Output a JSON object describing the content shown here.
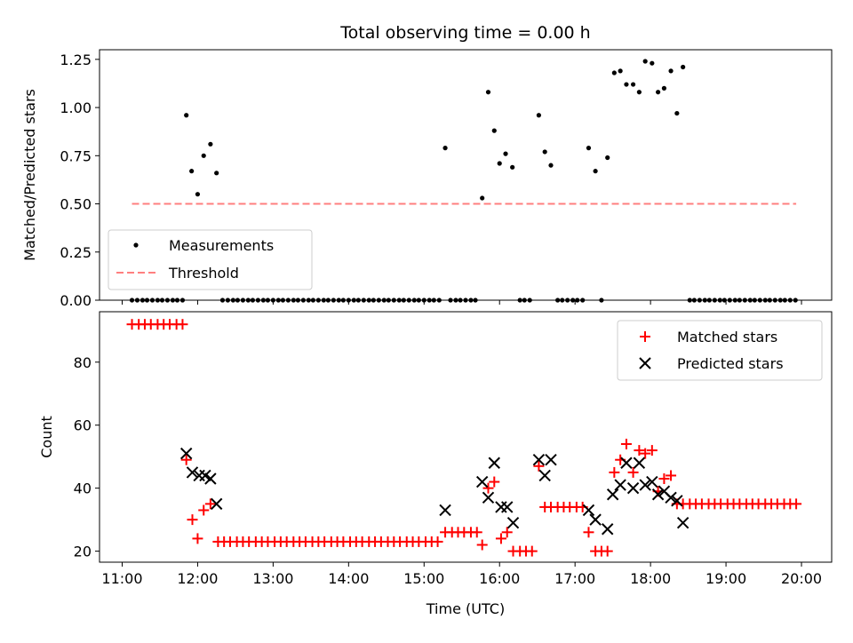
{
  "chart_data": [
    {
      "type": "scatter",
      "title": "Total observing time = 0.00 h",
      "ylabel": "Matched/Predicted stars",
      "xlabel": "",
      "xlim": [
        10.7,
        20.4
      ],
      "ylim": [
        0,
        1.3
      ],
      "xticks": [
        11,
        12,
        13,
        14,
        15,
        16,
        17,
        18,
        19,
        20
      ],
      "yticks": [
        0,
        0.25,
        0.5,
        0.75,
        1.0,
        1.25
      ],
      "ytick_labels": [
        "0.00",
        "0.25",
        "0.50",
        "0.75",
        "1.00",
        "1.25"
      ],
      "legend_position": "lower-left",
      "series": [
        {
          "name": "Measurements",
          "color": "#000000",
          "points": [
            [
              11.13,
              0
            ],
            [
              11.2,
              0
            ],
            [
              11.27,
              0
            ],
            [
              11.33,
              0
            ],
            [
              11.4,
              0
            ],
            [
              11.47,
              0
            ],
            [
              11.53,
              0
            ],
            [
              11.6,
              0
            ],
            [
              11.67,
              0
            ],
            [
              11.73,
              0
            ],
            [
              11.8,
              0
            ],
            [
              11.85,
              0.96
            ],
            [
              11.92,
              0.67
            ],
            [
              12.0,
              0.55
            ],
            [
              12.08,
              0.75
            ],
            [
              12.17,
              0.81
            ],
            [
              12.25,
              0.66
            ],
            [
              12.33,
              0
            ],
            [
              12.4,
              0
            ],
            [
              12.47,
              0
            ],
            [
              12.53,
              0
            ],
            [
              12.6,
              0
            ],
            [
              12.67,
              0
            ],
            [
              12.73,
              0
            ],
            [
              12.8,
              0
            ],
            [
              12.87,
              0
            ],
            [
              12.93,
              0
            ],
            [
              13.0,
              0
            ],
            [
              13.07,
              0
            ],
            [
              13.13,
              0
            ],
            [
              13.2,
              0
            ],
            [
              13.27,
              0
            ],
            [
              13.33,
              0
            ],
            [
              13.4,
              0
            ],
            [
              13.47,
              0
            ],
            [
              13.53,
              0
            ],
            [
              13.6,
              0
            ],
            [
              13.67,
              0
            ],
            [
              13.73,
              0
            ],
            [
              13.8,
              0
            ],
            [
              13.87,
              0
            ],
            [
              13.93,
              0
            ],
            [
              14.0,
              0
            ],
            [
              14.07,
              0
            ],
            [
              14.13,
              0
            ],
            [
              14.2,
              0
            ],
            [
              14.27,
              0
            ],
            [
              14.33,
              0
            ],
            [
              14.4,
              0
            ],
            [
              14.47,
              0
            ],
            [
              14.53,
              0
            ],
            [
              14.6,
              0
            ],
            [
              14.67,
              0
            ],
            [
              14.73,
              0
            ],
            [
              14.8,
              0
            ],
            [
              14.87,
              0
            ],
            [
              14.93,
              0
            ],
            [
              15.0,
              0
            ],
            [
              15.07,
              0
            ],
            [
              15.13,
              0
            ],
            [
              15.2,
              0
            ],
            [
              15.28,
              0.79
            ],
            [
              15.35,
              0
            ],
            [
              15.42,
              0
            ],
            [
              15.48,
              0
            ],
            [
              15.55,
              0
            ],
            [
              15.62,
              0
            ],
            [
              15.68,
              0
            ],
            [
              15.77,
              0.53
            ],
            [
              15.85,
              1.08
            ],
            [
              15.93,
              0.88
            ],
            [
              16.0,
              0.71
            ],
            [
              16.08,
              0.76
            ],
            [
              16.17,
              0.69
            ],
            [
              16.27,
              0
            ],
            [
              16.33,
              0
            ],
            [
              16.4,
              0
            ],
            [
              16.52,
              0.96
            ],
            [
              16.6,
              0.77
            ],
            [
              16.68,
              0.7
            ],
            [
              16.77,
              0
            ],
            [
              16.83,
              0
            ],
            [
              16.9,
              0
            ],
            [
              16.97,
              0
            ],
            [
              17.03,
              0
            ],
            [
              17.1,
              0
            ],
            [
              17.18,
              0.79
            ],
            [
              17.27,
              0.67
            ],
            [
              17.35,
              0
            ],
            [
              17.43,
              0.74
            ],
            [
              17.52,
              1.18
            ],
            [
              17.6,
              1.19
            ],
            [
              17.68,
              1.12
            ],
            [
              17.77,
              1.12
            ],
            [
              17.85,
              1.08
            ],
            [
              17.93,
              1.24
            ],
            [
              18.02,
              1.23
            ],
            [
              18.1,
              1.08
            ],
            [
              18.18,
              1.1
            ],
            [
              18.27,
              1.19
            ],
            [
              18.35,
              0.97
            ],
            [
              18.43,
              1.21
            ],
            [
              18.52,
              0
            ],
            [
              18.58,
              0
            ],
            [
              18.65,
              0
            ],
            [
              18.72,
              0
            ],
            [
              18.78,
              0
            ],
            [
              18.85,
              0
            ],
            [
              18.92,
              0
            ],
            [
              18.98,
              0
            ],
            [
              19.05,
              0
            ],
            [
              19.12,
              0
            ],
            [
              19.18,
              0
            ],
            [
              19.25,
              0
            ],
            [
              19.32,
              0
            ],
            [
              19.38,
              0
            ],
            [
              19.45,
              0
            ],
            [
              19.52,
              0
            ],
            [
              19.58,
              0
            ],
            [
              19.65,
              0
            ],
            [
              19.72,
              0
            ],
            [
              19.78,
              0
            ],
            [
              19.85,
              0
            ],
            [
              19.92,
              0
            ]
          ]
        },
        {
          "name": "Threshold",
          "color": "#ff7f7f",
          "style": "dashed",
          "points": [
            [
              11.13,
              0.5
            ],
            [
              19.93,
              0.5
            ]
          ]
        }
      ]
    },
    {
      "type": "scatter",
      "title": "",
      "xlabel": "Time (UTC)",
      "ylabel": "Count",
      "xlim": [
        10.7,
        20.4
      ],
      "ylim": [
        16.5,
        96
      ],
      "xticks": [
        11,
        12,
        13,
        14,
        15,
        16,
        17,
        18,
        19,
        20
      ],
      "xtick_labels": [
        "11:00",
        "12:00",
        "13:00",
        "14:00",
        "15:00",
        "16:00",
        "17:00",
        "18:00",
        "19:00",
        "20:00"
      ],
      "yticks": [
        20,
        40,
        60,
        80
      ],
      "legend_position": "top-right",
      "series": [
        {
          "name": "Matched stars",
          "marker": "plus",
          "color": "#ff0000",
          "points": [
            [
              11.13,
              92
            ],
            [
              11.22,
              92
            ],
            [
              11.3,
              92
            ],
            [
              11.38,
              92
            ],
            [
              11.47,
              92
            ],
            [
              11.55,
              92
            ],
            [
              11.63,
              92
            ],
            [
              11.72,
              92
            ],
            [
              11.8,
              92
            ],
            [
              11.85,
              49
            ],
            [
              11.93,
              30
            ],
            [
              12.0,
              24
            ],
            [
              12.08,
              33
            ],
            [
              12.17,
              35
            ],
            [
              12.27,
              23
            ],
            [
              12.35,
              23
            ],
            [
              12.43,
              23
            ],
            [
              12.52,
              23
            ],
            [
              12.6,
              23
            ],
            [
              12.68,
              23
            ],
            [
              12.77,
              23
            ],
            [
              12.85,
              23
            ],
            [
              12.93,
              23
            ],
            [
              13.02,
              23
            ],
            [
              13.1,
              23
            ],
            [
              13.18,
              23
            ],
            [
              13.27,
              23
            ],
            [
              13.35,
              23
            ],
            [
              13.43,
              23
            ],
            [
              13.52,
              23
            ],
            [
              13.6,
              23
            ],
            [
              13.68,
              23
            ],
            [
              13.77,
              23
            ],
            [
              13.85,
              23
            ],
            [
              13.93,
              23
            ],
            [
              14.02,
              23
            ],
            [
              14.1,
              23
            ],
            [
              14.18,
              23
            ],
            [
              14.27,
              23
            ],
            [
              14.35,
              23
            ],
            [
              14.43,
              23
            ],
            [
              14.52,
              23
            ],
            [
              14.6,
              23
            ],
            [
              14.68,
              23
            ],
            [
              14.77,
              23
            ],
            [
              14.85,
              23
            ],
            [
              14.93,
              23
            ],
            [
              15.02,
              23
            ],
            [
              15.1,
              23
            ],
            [
              15.18,
              23
            ],
            [
              15.28,
              26
            ],
            [
              15.37,
              26
            ],
            [
              15.45,
              26
            ],
            [
              15.53,
              26
            ],
            [
              15.62,
              26
            ],
            [
              15.7,
              26
            ],
            [
              15.77,
              22
            ],
            [
              15.85,
              40
            ],
            [
              15.93,
              42
            ],
            [
              16.02,
              24
            ],
            [
              16.1,
              26
            ],
            [
              16.18,
              20
            ],
            [
              16.27,
              20
            ],
            [
              16.35,
              20
            ],
            [
              16.43,
              20
            ],
            [
              16.52,
              47
            ],
            [
              16.6,
              34
            ],
            [
              16.68,
              34
            ],
            [
              16.77,
              34
            ],
            [
              16.85,
              34
            ],
            [
              16.93,
              34
            ],
            [
              17.02,
              34
            ],
            [
              17.1,
              34
            ],
            [
              17.18,
              26
            ],
            [
              17.27,
              20
            ],
            [
              17.35,
              20
            ],
            [
              17.43,
              20
            ],
            [
              17.52,
              45
            ],
            [
              17.6,
              49
            ],
            [
              17.68,
              54
            ],
            [
              17.77,
              45
            ],
            [
              17.85,
              52
            ],
            [
              17.93,
              51
            ],
            [
              18.02,
              52
            ],
            [
              18.1,
              39
            ],
            [
              18.18,
              43
            ],
            [
              18.27,
              44
            ],
            [
              18.35,
              35
            ],
            [
              18.43,
              35
            ],
            [
              18.52,
              35
            ],
            [
              18.6,
              35
            ],
            [
              18.68,
              35
            ],
            [
              18.77,
              35
            ],
            [
              18.85,
              35
            ],
            [
              18.93,
              35
            ],
            [
              19.02,
              35
            ],
            [
              19.1,
              35
            ],
            [
              19.18,
              35
            ],
            [
              19.27,
              35
            ],
            [
              19.35,
              35
            ],
            [
              19.43,
              35
            ],
            [
              19.52,
              35
            ],
            [
              19.6,
              35
            ],
            [
              19.68,
              35
            ],
            [
              19.77,
              35
            ],
            [
              19.85,
              35
            ],
            [
              19.93,
              35
            ]
          ]
        },
        {
          "name": "Predicted stars",
          "marker": "x",
          "color": "#000000",
          "points": [
            [
              11.85,
              51
            ],
            [
              11.93,
              45
            ],
            [
              12.02,
              44
            ],
            [
              12.1,
              44
            ],
            [
              12.17,
              43
            ],
            [
              12.25,
              35
            ],
            [
              15.28,
              33
            ],
            [
              15.77,
              42
            ],
            [
              15.85,
              37
            ],
            [
              15.93,
              48
            ],
            [
              16.02,
              34
            ],
            [
              16.1,
              34
            ],
            [
              16.18,
              29
            ],
            [
              16.52,
              49
            ],
            [
              16.6,
              44
            ],
            [
              16.68,
              49
            ],
            [
              17.18,
              33
            ],
            [
              17.27,
              30
            ],
            [
              17.43,
              27
            ],
            [
              17.5,
              38
            ],
            [
              17.6,
              41
            ],
            [
              17.68,
              48
            ],
            [
              17.77,
              40
            ],
            [
              17.85,
              48
            ],
            [
              17.93,
              41
            ],
            [
              18.02,
              42
            ],
            [
              18.1,
              38
            ],
            [
              18.18,
              39
            ],
            [
              18.27,
              37
            ],
            [
              18.35,
              36
            ],
            [
              18.43,
              29
            ]
          ]
        }
      ]
    }
  ]
}
